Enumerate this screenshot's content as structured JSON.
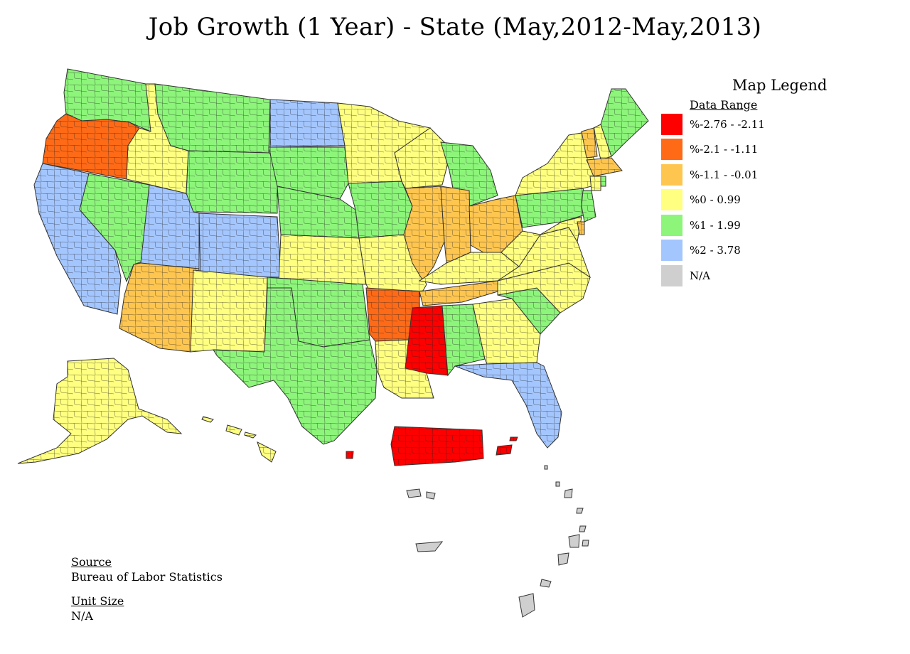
{
  "title": "Job Growth (1 Year) - State (May,2012-May,2013)",
  "legend": {
    "title": "Map Legend",
    "subtitle": "Data Range",
    "items": [
      {
        "label": "%-2.76 - -2.11",
        "color": "#ff0000"
      },
      {
        "label": "%-2.1 - -1.11",
        "color": "#ff6a17"
      },
      {
        "label": "%-1.1 - -0.01",
        "color": "#ffc64f"
      },
      {
        "label": "%0 - 0.99",
        "color": "#ffff80"
      },
      {
        "label": "%1 - 1.99",
        "color": "#8cf57a"
      },
      {
        "label": "%2 - 3.78",
        "color": "#a4c6ff"
      },
      {
        "label": "N/A",
        "color": "#cfcfcf"
      }
    ]
  },
  "source": {
    "heading": "Source",
    "value": "Bureau of Labor Statistics"
  },
  "unit_size": {
    "heading": "Unit Size",
    "value": "N/A"
  },
  "map": {
    "states": [
      {
        "id": "WA",
        "cls": 4
      },
      {
        "id": "OR",
        "cls": 1
      },
      {
        "id": "CA",
        "cls": 5
      },
      {
        "id": "NV",
        "cls": 4
      },
      {
        "id": "ID",
        "cls": 3
      },
      {
        "id": "MT",
        "cls": 4
      },
      {
        "id": "WY",
        "cls": 4
      },
      {
        "id": "UT",
        "cls": 5
      },
      {
        "id": "CO",
        "cls": 5
      },
      {
        "id": "AZ",
        "cls": 2
      },
      {
        "id": "NM",
        "cls": 3
      },
      {
        "id": "ND",
        "cls": 5
      },
      {
        "id": "SD",
        "cls": 4
      },
      {
        "id": "NE",
        "cls": 4
      },
      {
        "id": "KS",
        "cls": 3
      },
      {
        "id": "OK",
        "cls": 4
      },
      {
        "id": "TX",
        "cls": 4
      },
      {
        "id": "MN",
        "cls": 3
      },
      {
        "id": "IA",
        "cls": 4
      },
      {
        "id": "MO",
        "cls": 3
      },
      {
        "id": "AR",
        "cls": 1
      },
      {
        "id": "LA",
        "cls": 3
      },
      {
        "id": "WI",
        "cls": 3
      },
      {
        "id": "IL",
        "cls": 2
      },
      {
        "id": "MI",
        "cls": 4
      },
      {
        "id": "IN",
        "cls": 2
      },
      {
        "id": "OH",
        "cls": 2
      },
      {
        "id": "KY",
        "cls": 3
      },
      {
        "id": "TN",
        "cls": 2
      },
      {
        "id": "MS",
        "cls": 0
      },
      {
        "id": "AL",
        "cls": 4
      },
      {
        "id": "GA",
        "cls": 3
      },
      {
        "id": "FL",
        "cls": 5
      },
      {
        "id": "SC",
        "cls": 4
      },
      {
        "id": "NC",
        "cls": 3
      },
      {
        "id": "VA",
        "cls": 3
      },
      {
        "id": "WV",
        "cls": 3
      },
      {
        "id": "PA",
        "cls": 4
      },
      {
        "id": "NY",
        "cls": 3
      },
      {
        "id": "VT",
        "cls": 2
      },
      {
        "id": "NH",
        "cls": 3
      },
      {
        "id": "ME",
        "cls": 4
      },
      {
        "id": "MA",
        "cls": 2
      },
      {
        "id": "CT",
        "cls": 3
      },
      {
        "id": "RI",
        "cls": 4
      },
      {
        "id": "NJ",
        "cls": 4
      },
      {
        "id": "MD",
        "cls": 3
      },
      {
        "id": "DE",
        "cls": 2
      },
      {
        "id": "AK",
        "cls": 3
      },
      {
        "id": "HI",
        "cls": 3
      },
      {
        "id": "PR",
        "cls": 0
      },
      {
        "id": "VI",
        "cls": 0
      },
      {
        "id": "PAC",
        "cls": 6
      }
    ]
  }
}
